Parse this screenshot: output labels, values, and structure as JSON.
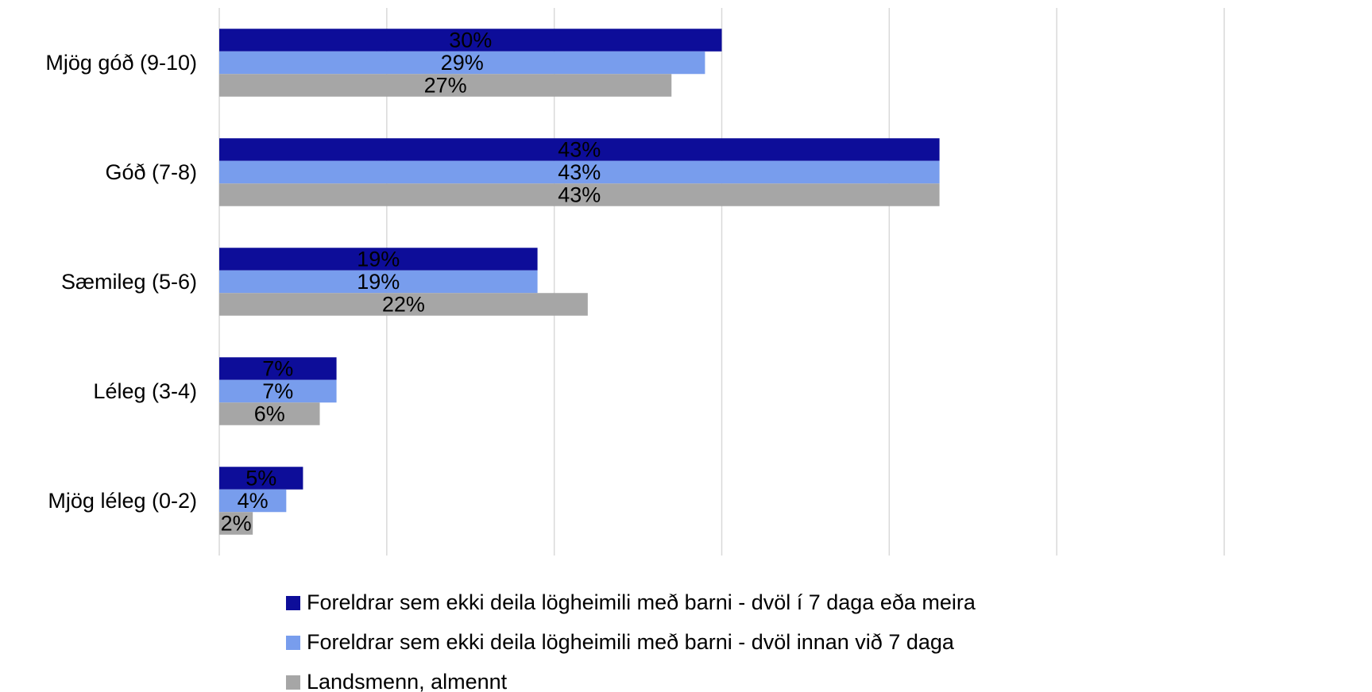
{
  "chart_data": {
    "type": "barh",
    "categories": [
      "Mjög góð (9-10)",
      "Góð (7-8)",
      "Sæmileg (5-6)",
      "Léleg (3-4)",
      "Mjög léleg (0-2)"
    ],
    "series": [
      {
        "name": "Foreldrar sem ekki deila lögheimili með barni - dvöl í 7 daga eða meira",
        "color": "#0d0d99",
        "values": [
          30,
          43,
          19,
          7,
          5
        ],
        "value_labels": [
          "30%",
          "43%",
          "19%",
          "7%",
          "5%"
        ]
      },
      {
        "name": "Foreldrar sem ekki deila lögheimili með barni - dvöl innan við 7 daga",
        "color": "#789ded",
        "values": [
          29,
          43,
          19,
          7,
          4
        ],
        "value_labels": [
          "29%",
          "43%",
          "19%",
          "7%",
          "4%"
        ]
      },
      {
        "name": "Landsmenn, almennt",
        "color": "#a6a6a6",
        "values": [
          27,
          43,
          22,
          6,
          2
        ],
        "value_labels": [
          "27%",
          "43%",
          "22%",
          "6%",
          "2%"
        ]
      }
    ],
    "xlim": [
      0,
      60
    ],
    "xticks": [
      0,
      10,
      20,
      30,
      40,
      50,
      60
    ],
    "grid": true,
    "legend": "bottom"
  }
}
